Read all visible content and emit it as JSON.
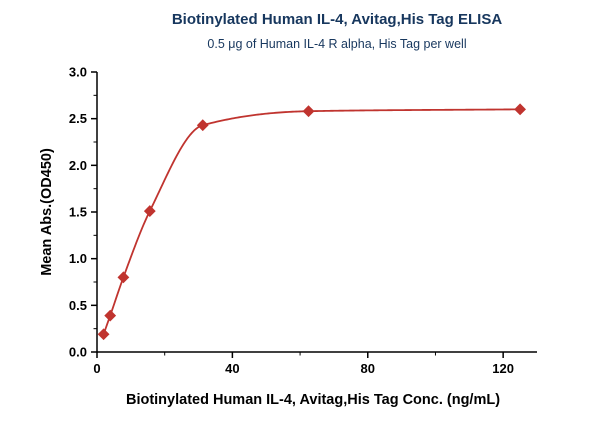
{
  "chart_data": {
    "type": "scatter",
    "title": "Biotinylated Human IL-4, Avitag,His Tag ELISA",
    "subtitle": "0.5 μg of Human IL-4 R alpha, His Tag per well",
    "xlabel": "Biotinylated Human IL-4, Avitag,His Tag Conc. (ng/mL)",
    "ylabel": "Mean Abs.(OD450)",
    "x": [
      1.95,
      3.9,
      7.8,
      15.6,
      31.25,
      62.5,
      125
    ],
    "y": [
      0.19,
      0.39,
      0.8,
      1.51,
      2.43,
      2.58,
      2.6
    ],
    "xlim": [
      0,
      130
    ],
    "ylim": [
      0,
      3
    ],
    "xticks": [
      0,
      40,
      80,
      120
    ],
    "xtick_labels": [
      "0",
      "40",
      "80",
      "120"
    ],
    "xticks_minor": [
      20,
      60,
      100
    ],
    "yticks": [
      0,
      0.5,
      1,
      1.5,
      2,
      2.5,
      3
    ],
    "ytick_labels": [
      "0.0",
      "0.5",
      "1.0",
      "1.5",
      "2.0",
      "2.5",
      "3.0"
    ],
    "yticks_minor": [
      0.25,
      0.75,
      1.25,
      1.75,
      2.25,
      2.75
    ],
    "marker": "diamond",
    "curve_style": "smooth sigmoid fit through data points",
    "grid": false,
    "legend": null,
    "colors": {
      "series": "#c0342f",
      "title_text": "#17375e",
      "axis": "#000000"
    }
  }
}
